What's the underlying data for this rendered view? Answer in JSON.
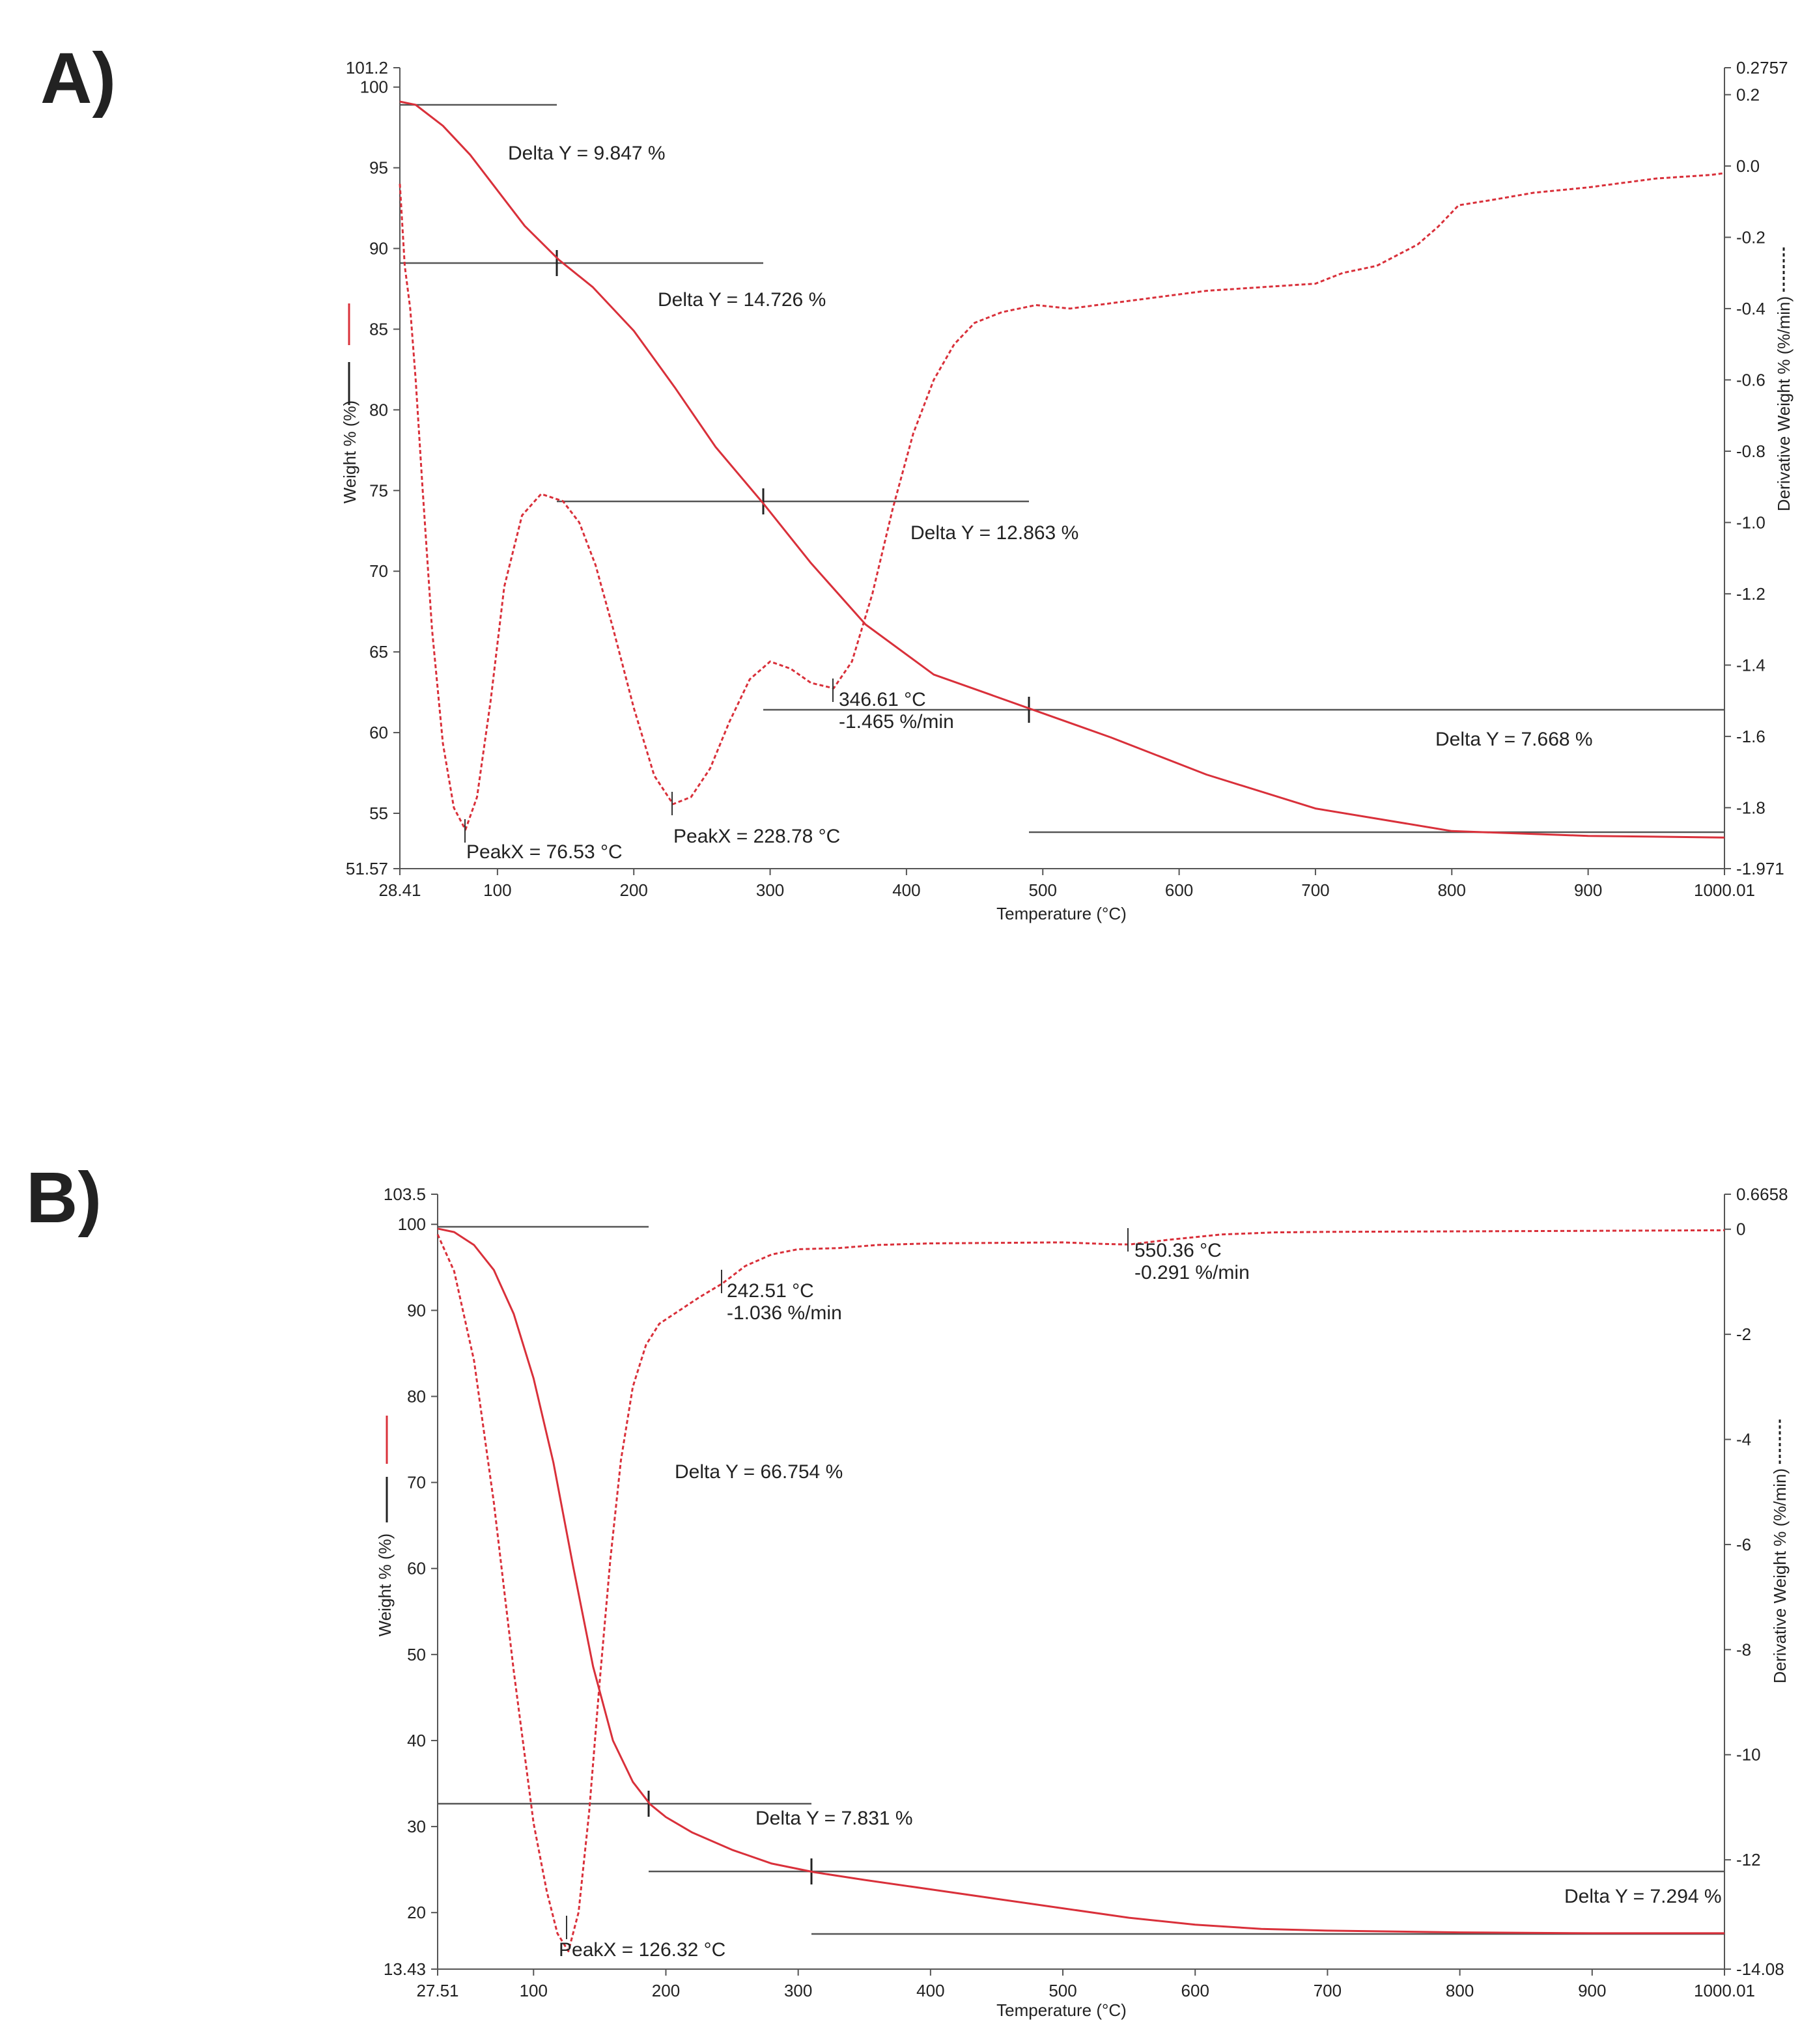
{
  "figure": {
    "panel_a_label": "A)",
    "panel_b_label": "B)"
  },
  "colors": {
    "weight_line": "#d9303a",
    "deriv_line": "#d9303a",
    "axis": "#555555",
    "step_line": "#555555",
    "text": "#222222"
  },
  "chart_data": [
    {
      "type": "line",
      "panel": "A)",
      "xlabel": "Temperature (°C)",
      "ylabel": "Weight % (%)",
      "y2label": "Derivative Weight % (%/min)",
      "xlim": [
        28.41,
        1000.01
      ],
      "ylim": [
        51.57,
        101.2
      ],
      "y2lim": [
        -1.971,
        0.2757
      ],
      "x_ticks": [
        28.41,
        100,
        200,
        300,
        400,
        500,
        600,
        700,
        800,
        900,
        1000.01
      ],
      "x_tick_labels": [
        "28.41",
        "100",
        "200",
        "300",
        "400",
        "500",
        "600",
        "700",
        "800",
        "900",
        "1000.01"
      ],
      "y_ticks": [
        51.57,
        55,
        60,
        65,
        70,
        75,
        80,
        85,
        90,
        95,
        100,
        101.2
      ],
      "y_tick_labels": [
        "51.57",
        "55",
        "60",
        "65",
        "70",
        "75",
        "80",
        "85",
        "90",
        "95",
        "100",
        "101.2"
      ],
      "y2_ticks": [
        -1.971,
        -1.8,
        -1.6,
        -1.4,
        -1.2,
        -1.0,
        -0.8,
        -0.6,
        -0.4,
        -0.2,
        0.0,
        0.2,
        0.2757
      ],
      "y2_tick_labels": [
        "-1.971",
        "-1.8",
        "-1.6",
        "-1.4",
        "-1.2",
        "-1.0",
        "-0.8",
        "-0.6",
        "-0.4",
        "-0.2",
        "0.0",
        "0.2",
        "0.2757"
      ],
      "series": [
        {
          "name": "Weight % (%)",
          "axis": "left",
          "style": "solid",
          "x": [
            28.41,
            40,
            60,
            80,
            100,
            120,
            145,
            170,
            200,
            230,
            260,
            295,
            330,
            370,
            420,
            460,
            490,
            550,
            620,
            700,
            800,
            900,
            1000.01
          ],
          "y": [
            99.1,
            98.9,
            97.6,
            95.8,
            93.6,
            91.4,
            89.3,
            87.6,
            84.9,
            81.4,
            77.7,
            74.2,
            70.5,
            66.7,
            63.6,
            62.4,
            61.5,
            59.7,
            57.4,
            55.3,
            53.9,
            53.6,
            53.5
          ]
        },
        {
          "name": "Derivative Weight % (%/min)",
          "axis": "right",
          "style": "dashed",
          "x": [
            28.41,
            32,
            36,
            40,
            45,
            52,
            60,
            68,
            76.53,
            85,
            95,
            105,
            118,
            132,
            148,
            160,
            172,
            185,
            200,
            215,
            228.78,
            242,
            256,
            270,
            285,
            300,
            315,
            330,
            346.61,
            360,
            375,
            390,
            405,
            420,
            435,
            450,
            470,
            495,
            520,
            550,
            580,
            620,
            660,
            700,
            720,
            745,
            775,
            790,
            805,
            830,
            860,
            900,
            930,
            950,
            970,
            990,
            1000.01
          ],
          "y": [
            -0.05,
            -0.28,
            -0.4,
            -0.6,
            -0.9,
            -1.3,
            -1.62,
            -1.8,
            -1.862,
            -1.77,
            -1.5,
            -1.18,
            -0.98,
            -0.92,
            -0.94,
            -1.0,
            -1.12,
            -1.3,
            -1.52,
            -1.71,
            -1.79,
            -1.77,
            -1.69,
            -1.56,
            -1.44,
            -1.39,
            -1.41,
            -1.45,
            -1.465,
            -1.39,
            -1.2,
            -0.96,
            -0.75,
            -0.6,
            -0.5,
            -0.44,
            -0.41,
            -0.39,
            -0.4,
            -0.385,
            -0.37,
            -0.35,
            -0.34,
            -0.33,
            -0.3,
            -0.28,
            -0.22,
            -0.17,
            -0.11,
            -0.095,
            -0.075,
            -0.06,
            -0.045,
            -0.035,
            -0.03,
            -0.025,
            -0.02
          ]
        }
      ],
      "steps": [
        {
          "label": "Delta Y = 9.847 %"
        },
        {
          "label": "Delta Y = 14.726 %"
        },
        {
          "label": "Delta Y = 12.863 %"
        },
        {
          "label": "Delta Y = 7.668 %"
        }
      ],
      "annotations": [
        {
          "label": "PeakX = 76.53 °C"
        },
        {
          "label": "PeakX = 228.78 °C"
        },
        {
          "label": "346.61 °C",
          "label2": "-1.465 %/min"
        }
      ]
    },
    {
      "type": "line",
      "panel": "B)",
      "xlabel": "Temperature (°C)",
      "ylabel": "Weight % (%)",
      "y2label": "Derivative Weight % (%/min)",
      "xlim": [
        27.51,
        1000.01
      ],
      "ylim": [
        13.43,
        103.5
      ],
      "y2lim": [
        -14.08,
        0.6658
      ],
      "x_ticks": [
        27.51,
        100,
        200,
        300,
        400,
        500,
        600,
        700,
        800,
        900,
        1000.01
      ],
      "x_tick_labels": [
        "27.51",
        "100",
        "200",
        "300",
        "400",
        "500",
        "600",
        "700",
        "800",
        "900",
        "1000.01"
      ],
      "y_ticks": [
        13.43,
        20,
        30,
        40,
        50,
        60,
        70,
        80,
        90,
        100,
        103.5
      ],
      "y_tick_labels": [
        "13.43",
        "20",
        "30",
        "40",
        "50",
        "60",
        "70",
        "80",
        "90",
        "100",
        "103.5"
      ],
      "y2_ticks": [
        -14.08,
        -12,
        -10,
        -8,
        -6,
        -4,
        -2,
        0,
        0.6658
      ],
      "y2_tick_labels": [
        "-14.08",
        "-12",
        "-10",
        "-8",
        "-6",
        "-4",
        "-2",
        "0",
        "0.6658"
      ],
      "series": [
        {
          "name": "Weight % (%)",
          "axis": "left",
          "style": "solid",
          "x": [
            27.51,
            40,
            55,
            70,
            85,
            100,
            115,
            130,
            145,
            160,
            175,
            188,
            200,
            220,
            250,
            280,
            312,
            350,
            400,
            450,
            500,
            550,
            600,
            650,
            700,
            800,
            900,
            1000.01
          ],
          "y": [
            99.5,
            99.1,
            97.6,
            94.7,
            89.6,
            82.1,
            72.3,
            60.2,
            48.6,
            40.0,
            35.2,
            32.6,
            31.1,
            29.3,
            27.3,
            25.7,
            24.7,
            23.8,
            22.7,
            21.6,
            20.5,
            19.4,
            18.6,
            18.1,
            17.9,
            17.7,
            17.6,
            17.6
          ]
        },
        {
          "name": "Derivative Weight % (%/min)",
          "axis": "right",
          "style": "dashed",
          "x": [
            27.51,
            40,
            55,
            70,
            85,
            100,
            110,
            118,
            126.32,
            134,
            142,
            150,
            158,
            166,
            175,
            185,
            195,
            210,
            225,
            242.51,
            260,
            280,
            300,
            330,
            360,
            400,
            450,
            500,
            530,
            550.36,
            580,
            620,
            660,
            700,
            800,
            900,
            1000.01
          ],
          "y": [
            -0.1,
            -0.8,
            -2.5,
            -5.2,
            -8.4,
            -11.3,
            -12.6,
            -13.4,
            -13.74,
            -13.0,
            -11.1,
            -8.6,
            -6.3,
            -4.4,
            -3.0,
            -2.2,
            -1.8,
            -1.55,
            -1.3,
            -1.036,
            -0.7,
            -0.48,
            -0.38,
            -0.36,
            -0.3,
            -0.27,
            -0.26,
            -0.25,
            -0.28,
            -0.291,
            -0.2,
            -0.1,
            -0.06,
            -0.05,
            -0.04,
            -0.03,
            -0.02
          ]
        }
      ],
      "steps": [
        {
          "label": "Delta Y = 66.754 %"
        },
        {
          "label": "Delta Y = 7.831 %"
        },
        {
          "label": "Delta Y = 7.294 %"
        }
      ],
      "annotations": [
        {
          "label": "PeakX = 126.32 °C"
        },
        {
          "label": "242.51 °C",
          "label2": "-1.036 %/min"
        },
        {
          "label": "550.36 °C",
          "label2": "-0.291 %/min"
        }
      ]
    }
  ]
}
